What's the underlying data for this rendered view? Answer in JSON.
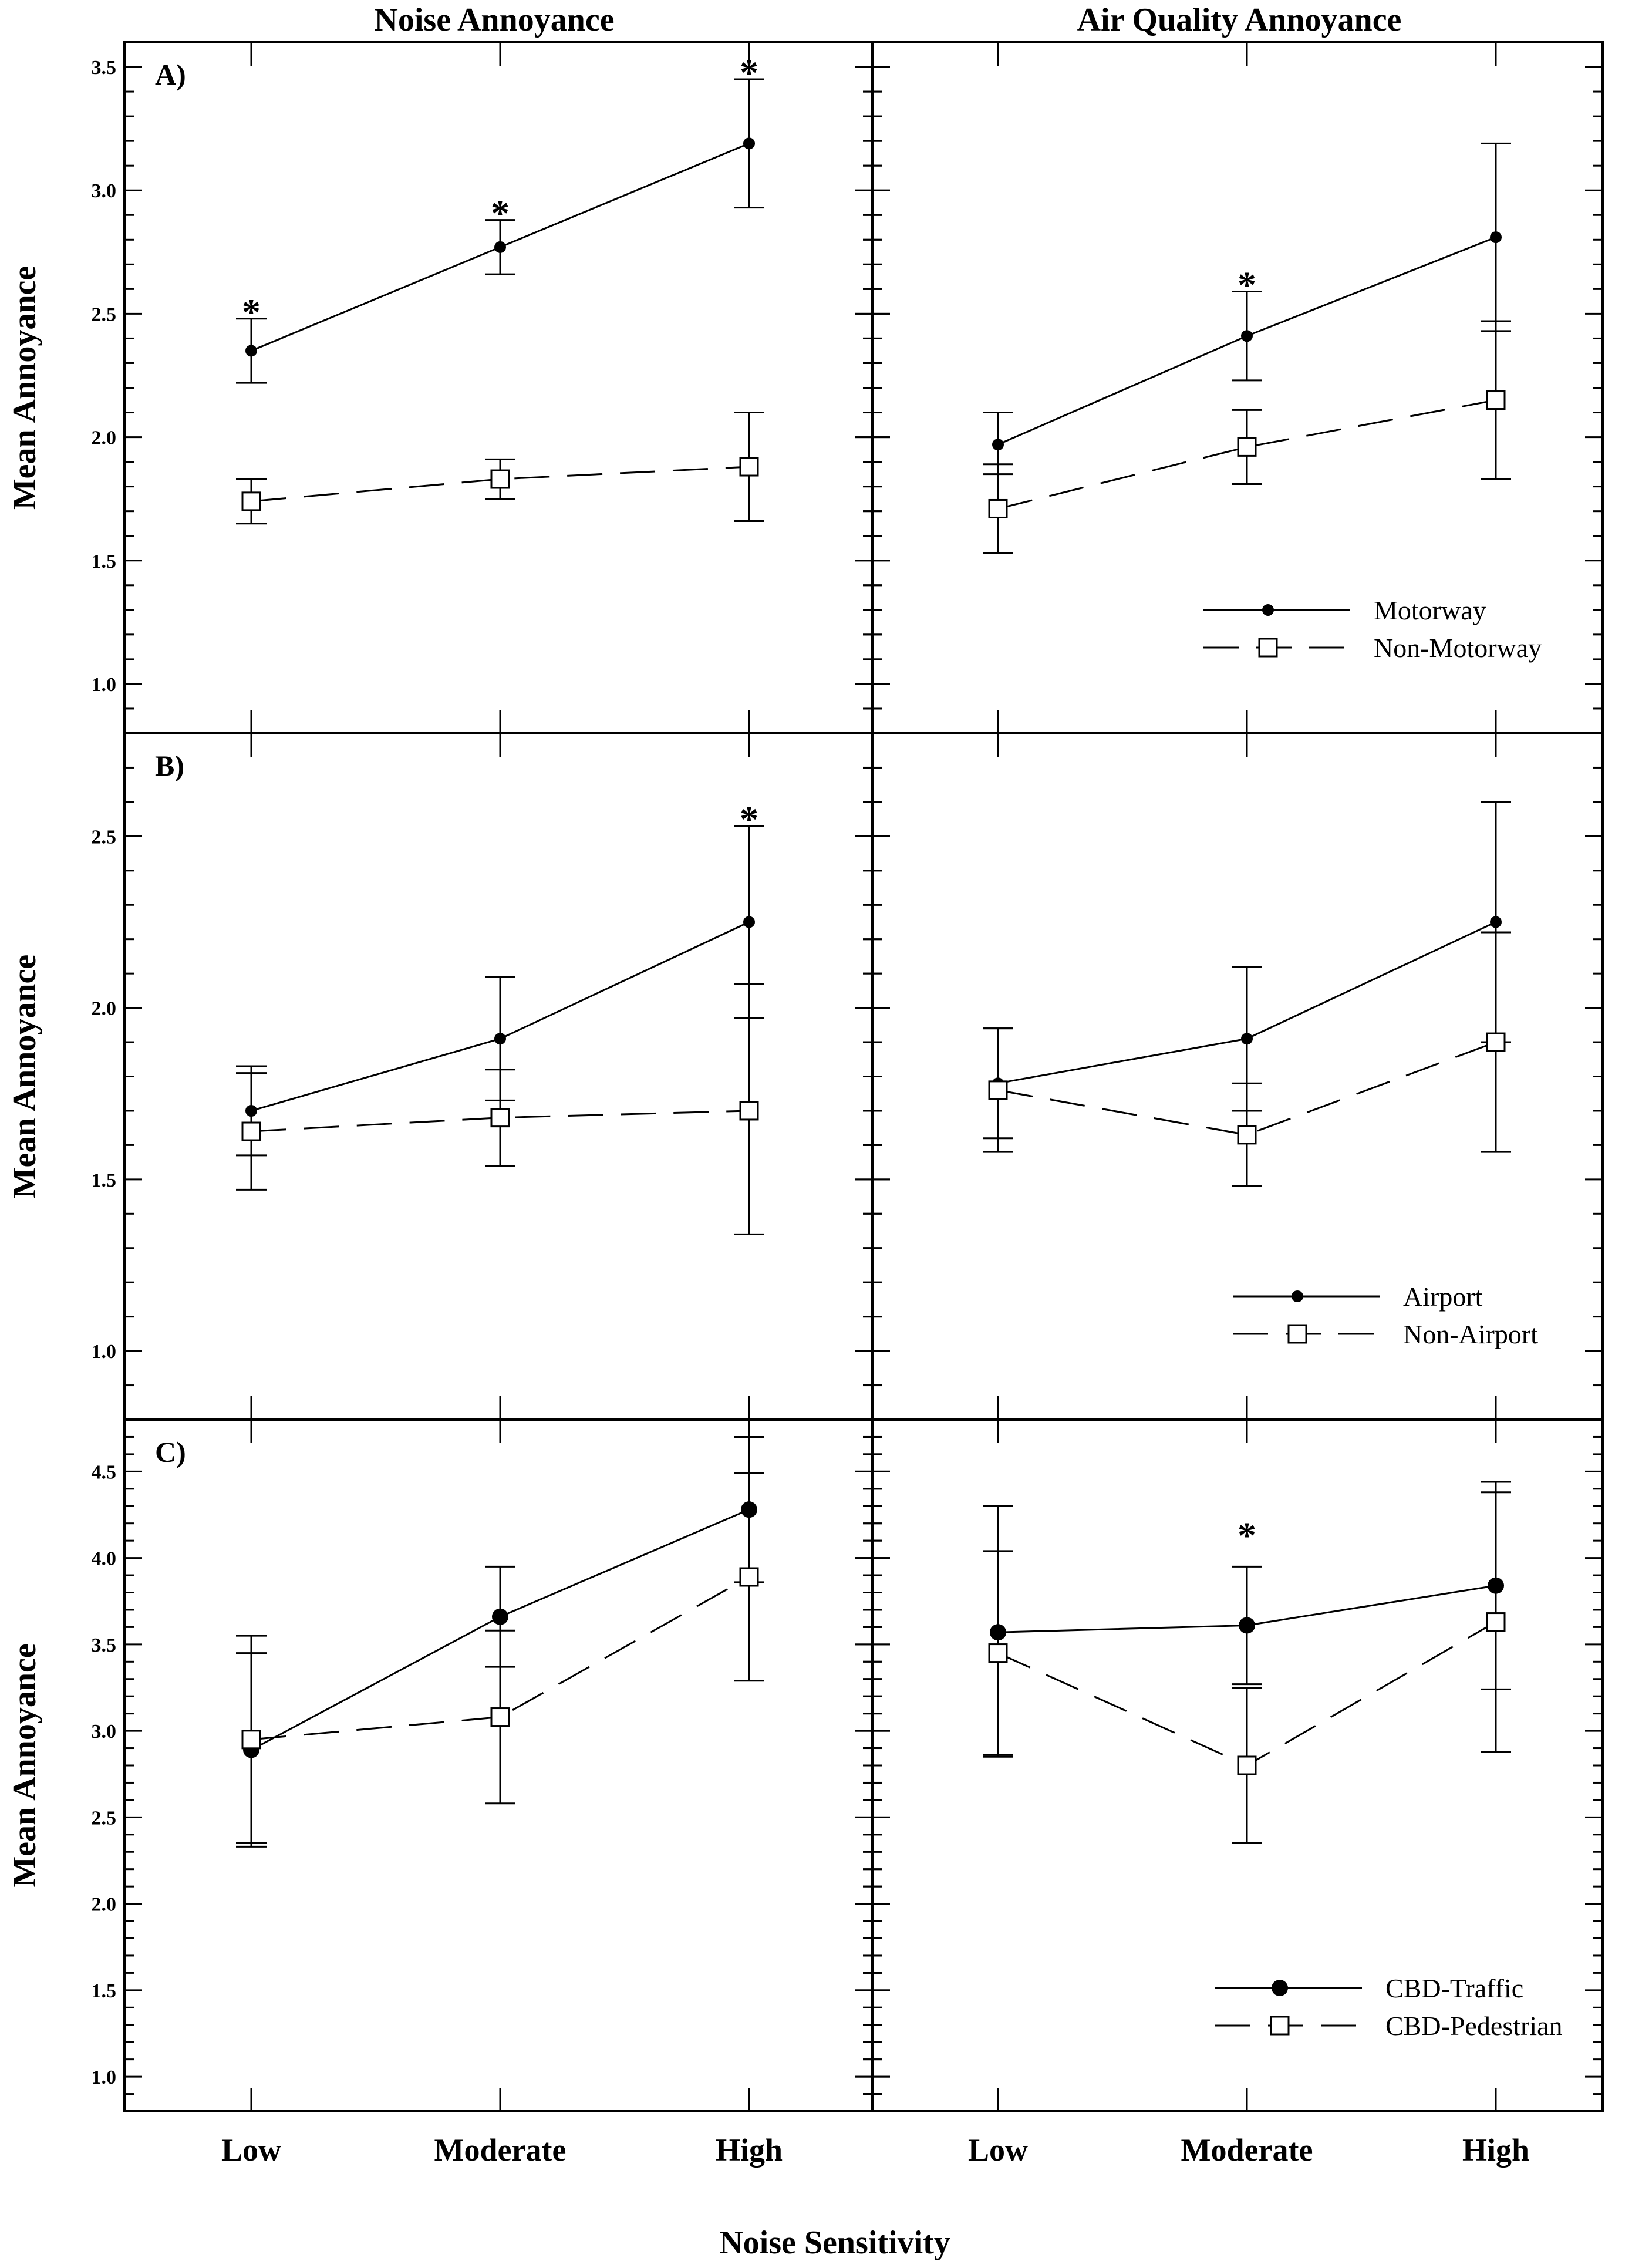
{
  "titles": {
    "left": "Noise Annoyance",
    "right": "Air Quality Annoyance"
  },
  "xlabel": "Noise Sensitivity",
  "ylabel": "Mean Annoyance",
  "categories": [
    "Low",
    "Moderate",
    "High"
  ],
  "chart_data": [
    {
      "type": "line",
      "panel": "A)",
      "column": "Noise Annoyance",
      "ylabel": "Mean Annoyance",
      "ylim": [
        0.8,
        3.6
      ],
      "yticks": [
        "1.0",
        "1.5",
        "2.0",
        "2.5",
        "3.0",
        "3.5"
      ],
      "categories": [
        "Low",
        "Moderate",
        "High"
      ],
      "series": [
        {
          "name": "Motorway",
          "marker": "filled-dot-small",
          "dash": "solid",
          "values": [
            2.35,
            2.77,
            3.19
          ],
          "lower": [
            2.22,
            2.66,
            2.93
          ],
          "upper": [
            2.48,
            2.88,
            3.45
          ]
        },
        {
          "name": "Non-Motorway",
          "marker": "open-square",
          "dash": "dashed",
          "values": [
            1.74,
            1.83,
            1.88
          ],
          "lower": [
            1.65,
            1.75,
            1.66
          ],
          "upper": [
            1.83,
            1.91,
            2.1
          ]
        }
      ],
      "significant": [
        "Low",
        "Moderate",
        "High"
      ],
      "significance_symbol": "*"
    },
    {
      "type": "line",
      "panel": "",
      "column": "Air Quality Annoyance",
      "ylim": [
        0.8,
        3.6
      ],
      "categories": [
        "Low",
        "Moderate",
        "High"
      ],
      "series": [
        {
          "name": "Motorway",
          "marker": "filled-dot-small",
          "dash": "solid",
          "values": [
            1.97,
            2.41,
            2.81
          ],
          "lower": [
            1.85,
            2.23,
            2.43
          ],
          "upper": [
            2.1,
            2.59,
            3.19
          ]
        },
        {
          "name": "Non-Motorway",
          "marker": "open-square",
          "dash": "dashed",
          "values": [
            1.71,
            1.96,
            2.15
          ],
          "lower": [
            1.53,
            1.81,
            1.83
          ],
          "upper": [
            1.89,
            2.11,
            2.47
          ]
        }
      ],
      "significant": [
        "Moderate"
      ],
      "significance_symbol": "*",
      "legend": {
        "position": "bottom-right",
        "entries": [
          "Motorway",
          "Non-Motorway"
        ]
      }
    },
    {
      "type": "line",
      "panel": "B)",
      "column": "Noise Annoyance",
      "ylabel": "Mean Annoyance",
      "ylim": [
        0.8,
        2.8
      ],
      "yticks": [
        "1.0",
        "1.5",
        "2.0",
        "2.5"
      ],
      "categories": [
        "Low",
        "Moderate",
        "High"
      ],
      "series": [
        {
          "name": "Airport",
          "marker": "filled-dot-small",
          "dash": "solid",
          "values": [
            1.7,
            1.91,
            2.25
          ],
          "lower": [
            1.57,
            1.73,
            1.97
          ],
          "upper": [
            1.83,
            2.09,
            2.53
          ]
        },
        {
          "name": "Non-Airport",
          "marker": "open-square",
          "dash": "dashed",
          "values": [
            1.64,
            1.68,
            1.7
          ],
          "lower": [
            1.47,
            1.54,
            1.34
          ],
          "upper": [
            1.81,
            1.82,
            2.07
          ]
        }
      ],
      "significant": [
        "High"
      ],
      "significance_symbol": "*"
    },
    {
      "type": "line",
      "panel": "",
      "column": "Air Quality Annoyance",
      "ylim": [
        0.8,
        2.8
      ],
      "categories": [
        "Low",
        "Moderate",
        "High"
      ],
      "series": [
        {
          "name": "Airport",
          "marker": "filled-dot-small",
          "dash": "solid",
          "values": [
            1.78,
            1.91,
            2.25
          ],
          "lower": [
            1.62,
            1.7,
            1.9
          ],
          "upper": [
            1.94,
            2.12,
            2.6
          ]
        },
        {
          "name": "Non-Airport",
          "marker": "open-square",
          "dash": "dashed",
          "values": [
            1.76,
            1.63,
            1.9
          ],
          "lower": [
            1.58,
            1.48,
            1.58
          ],
          "upper": [
            1.94,
            1.78,
            2.22
          ]
        }
      ],
      "significant": [],
      "significance_symbol": "*",
      "legend": {
        "position": "bottom-right",
        "entries": [
          "Airport",
          "Non-Airport"
        ]
      }
    },
    {
      "type": "line",
      "panel": "C)",
      "column": "Noise Annoyance",
      "ylabel": "Mean Annoyance",
      "ylim": [
        0.8,
        4.8
      ],
      "yticks": [
        "1.0",
        "1.5",
        "2.0",
        "2.5",
        "3.0",
        "3.5",
        "4.0",
        "4.5"
      ],
      "categories": [
        "Low",
        "Moderate",
        "High"
      ],
      "series": [
        {
          "name": "CBD-Traffic",
          "marker": "filled-dot-large",
          "dash": "solid",
          "values": [
            2.89,
            3.66,
            4.28
          ],
          "lower": [
            2.33,
            3.37,
            3.86
          ],
          "upper": [
            3.45,
            3.95,
            4.7
          ]
        },
        {
          "name": "CBD-Pedestrian",
          "marker": "open-square",
          "dash": "dashed",
          "values": [
            2.95,
            3.08,
            3.89
          ],
          "lower": [
            2.35,
            2.58,
            3.29
          ],
          "upper": [
            3.55,
            3.58,
            4.49
          ]
        }
      ],
      "significant": [],
      "significance_symbol": "*"
    },
    {
      "type": "line",
      "panel": "",
      "column": "Air Quality Annoyance",
      "ylim": [
        0.8,
        4.8
      ],
      "categories": [
        "Low",
        "Moderate",
        "High"
      ],
      "series": [
        {
          "name": "CBD-Traffic",
          "marker": "filled-dot-large",
          "dash": "solid",
          "values": [
            3.57,
            3.61,
            3.84
          ],
          "lower": [
            2.85,
            3.27,
            3.24
          ],
          "upper": [
            4.3,
            3.95,
            4.44
          ]
        },
        {
          "name": "CBD-Pedestrian",
          "marker": "open-square",
          "dash": "dashed",
          "values": [
            3.45,
            2.8,
            3.63
          ],
          "lower": [
            2.86,
            2.35,
            2.88
          ],
          "upper": [
            4.04,
            3.25,
            4.38
          ]
        }
      ],
      "significant": [
        "Moderate"
      ],
      "significance_symbol": "*",
      "legend": {
        "position": "bottom-right",
        "entries": [
          "CBD-Traffic",
          "CBD-Pedestrian"
        ]
      }
    }
  ]
}
